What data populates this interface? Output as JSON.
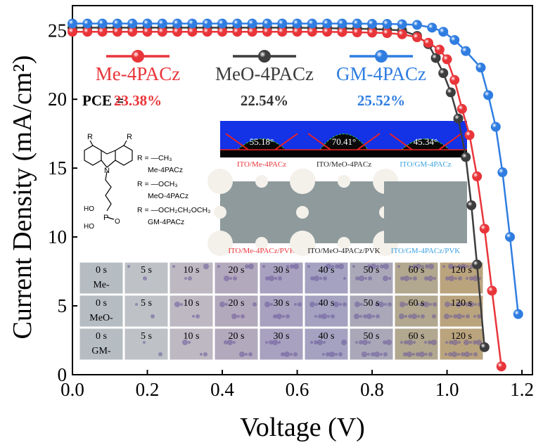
{
  "chart_data": {
    "type": "line",
    "xlabel": "Voltage (V)",
    "ylabel": "Current Density (mA/cm²)",
    "xlim": [
      0,
      1.228
    ],
    "ylim": [
      0,
      26.8
    ],
    "xticks": [
      {
        "value": 0,
        "label": "0.0"
      },
      {
        "value": 0.2,
        "label": "0.2"
      },
      {
        "value": 0.4,
        "label": "0.4"
      },
      {
        "value": 0.6,
        "label": "0.6"
      },
      {
        "value": 0.8,
        "label": "0.8"
      },
      {
        "value": 1.0,
        "label": "1.0"
      },
      {
        "value": 1.2,
        "label": "1.2"
      }
    ],
    "yticks": [
      0,
      5,
      10,
      15,
      20,
      25
    ],
    "pce_label": "PCE =",
    "series": [
      {
        "name": "MeO-4PACz",
        "color": "#3d3d3d",
        "pce": "22.54%",
        "x": [
          0,
          0.04,
          0.08,
          0.12,
          0.16,
          0.2,
          0.24,
          0.28,
          0.32,
          0.36,
          0.4,
          0.44,
          0.48,
          0.52,
          0.56,
          0.6,
          0.64,
          0.68,
          0.72,
          0.76,
          0.8,
          0.84,
          0.88,
          0.92,
          0.95,
          0.97,
          0.99,
          1.01,
          1.03,
          1.05,
          1.065,
          1.08,
          1.1
        ],
        "values": [
          25.2,
          25.2,
          25.2,
          25.2,
          25.2,
          25.2,
          25.2,
          25.2,
          25.2,
          25.2,
          25.2,
          25.2,
          25.2,
          25.2,
          25.2,
          25.2,
          25.18,
          25.16,
          25.14,
          25.12,
          25.1,
          25.06,
          25.0,
          24.6,
          24.0,
          23.0,
          21.9,
          20.5,
          18.6,
          15.8,
          12.3,
          8.0,
          2.0
        ]
      },
      {
        "name": "Me-4PACz",
        "color": "#e8353a",
        "pce": "23.38%",
        "x": [
          0,
          0.04,
          0.08,
          0.12,
          0.16,
          0.2,
          0.24,
          0.28,
          0.32,
          0.36,
          0.4,
          0.44,
          0.48,
          0.52,
          0.56,
          0.6,
          0.64,
          0.68,
          0.72,
          0.76,
          0.8,
          0.84,
          0.88,
          0.92,
          0.95,
          0.98,
          1.0,
          1.02,
          1.04,
          1.06,
          1.08,
          1.1,
          1.12,
          1.145
        ],
        "values": [
          24.9,
          24.9,
          24.9,
          24.9,
          24.9,
          24.9,
          24.9,
          24.9,
          24.9,
          24.9,
          24.9,
          24.9,
          24.9,
          24.9,
          24.9,
          24.9,
          24.9,
          24.9,
          24.88,
          24.86,
          24.84,
          24.8,
          24.72,
          24.5,
          24.1,
          23.6,
          22.9,
          21.4,
          19.3,
          17.4,
          14.4,
          10.6,
          6.1,
          0.6
        ]
      },
      {
        "name": "GM-4PACz",
        "color": "#2f7de1",
        "pce": "25.52%",
        "x": [
          0,
          0.04,
          0.08,
          0.12,
          0.16,
          0.2,
          0.24,
          0.28,
          0.32,
          0.36,
          0.4,
          0.44,
          0.48,
          0.52,
          0.56,
          0.6,
          0.64,
          0.68,
          0.72,
          0.76,
          0.8,
          0.84,
          0.88,
          0.92,
          0.96,
          0.99,
          1.02,
          1.05,
          1.09,
          1.11,
          1.13,
          1.148,
          1.168,
          1.19
        ],
        "values": [
          25.5,
          25.5,
          25.5,
          25.5,
          25.5,
          25.5,
          25.5,
          25.5,
          25.5,
          25.5,
          25.5,
          25.5,
          25.5,
          25.5,
          25.5,
          25.5,
          25.5,
          25.5,
          25.5,
          25.5,
          25.48,
          25.47,
          25.45,
          25.4,
          25.2,
          24.9,
          24.3,
          23.5,
          22.3,
          20.3,
          18.0,
          14.7,
          10.0,
          4.4
        ]
      }
    ],
    "structure": {
      "r_labels": [
        "R",
        "R"
      ],
      "n": "N",
      "ho": [
        "HO",
        "HO"
      ],
      "p": "P",
      "o": "O",
      "substituents": [
        "R = —CH₃",
        "R = —OCH₃",
        "R = —OCH₂CH₂OCH₃"
      ],
      "names": [
        "Me-4PACz",
        "MeO-4PACz",
        "GM-4PACz"
      ]
    },
    "contact_angles": [
      {
        "angle": "55.18°",
        "caption": "ITO/Me-4PACz",
        "color": "#e8353a"
      },
      {
        "angle": "70.41°",
        "caption": "ITO/MeO-4PACz",
        "color": "#222222"
      },
      {
        "angle": "45.34°",
        "caption": "ITO/GM-4PACz",
        "color": "#3aa0e0"
      }
    ],
    "films": [
      {
        "caption": "ITO/Me-4PACz/PVK",
        "color": "#e8353a"
      },
      {
        "caption": "ITO/MeO-4PACz/PVK",
        "color": "#222222"
      },
      {
        "caption": "ITO/GM-4PACz/PVK",
        "color": "#3aa0e0"
      }
    ],
    "time_series": {
      "times": [
        "0 s",
        "5 s",
        "10 s",
        "20 s",
        "30 s",
        "40 s",
        "50 s",
        "60 s",
        "120 s"
      ],
      "rows": [
        "Me-",
        "MeO-",
        "GM-"
      ]
    }
  }
}
